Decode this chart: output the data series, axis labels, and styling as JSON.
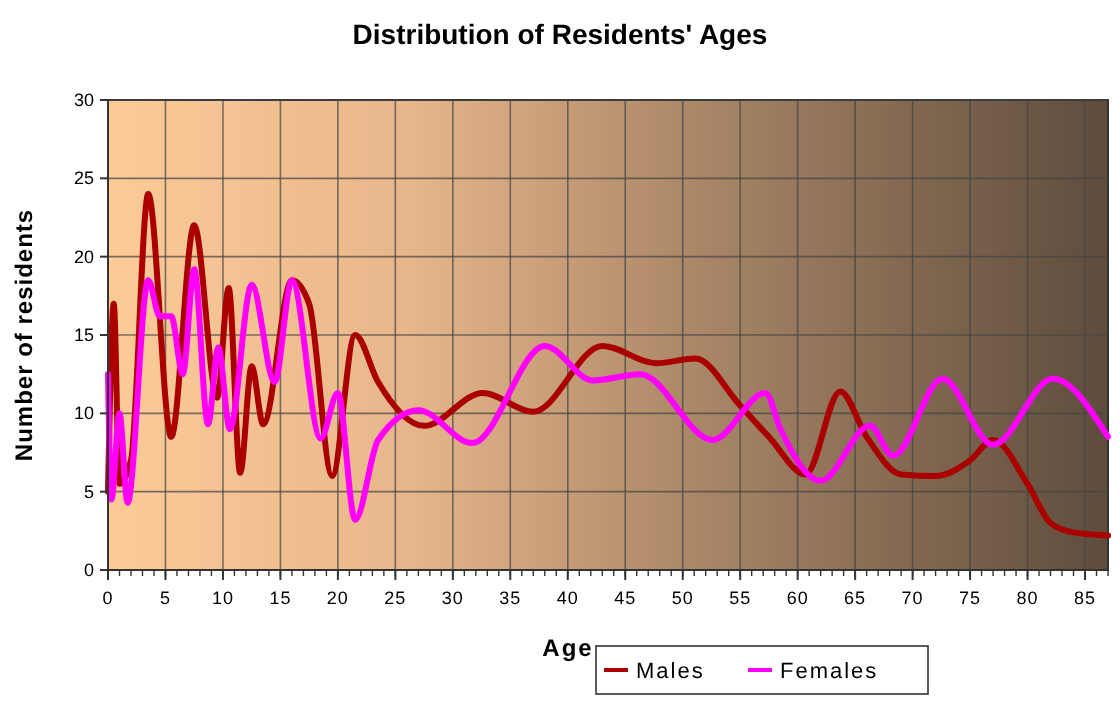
{
  "chart_data": {
    "type": "line",
    "title": "Distribution of Residents' Ages",
    "xlabel": "Age",
    "ylabel": "Number of residents",
    "xlim": [
      0,
      87
    ],
    "xticks": [
      0,
      5,
      10,
      15,
      20,
      25,
      30,
      35,
      40,
      45,
      50,
      55,
      60,
      65,
      70,
      75,
      80,
      85
    ],
    "ylim": [
      0,
      30
    ],
    "yticks": [
      0,
      5,
      10,
      15,
      20,
      25,
      30
    ],
    "grid": true,
    "legend": "bottom right",
    "marker": "none",
    "line_style": "solid",
    "series": [
      {
        "name": "Males",
        "color": "#aa0000",
        "x": [
          0,
          0.5,
          1,
          2,
          3.5,
          5.5,
          7.5,
          9.5,
          10.5,
          11.5,
          12.5,
          13.5,
          16,
          17.5,
          19.5,
          21.5,
          23.5,
          27.5,
          32.6,
          37,
          43,
          47.7,
          51.1,
          55,
          57.5,
          60.7,
          63.7,
          66,
          69,
          72,
          75,
          77,
          80,
          82,
          84,
          87
        ],
        "values": [
          5,
          17,
          5.5,
          7,
          24,
          8.5,
          22,
          11,
          18,
          6.2,
          13,
          9.3,
          18.5,
          17,
          6,
          15,
          12,
          9.2,
          11.3,
          10.1,
          14.3,
          13.2,
          13.5,
          10.5,
          8.5,
          6.1,
          11.4,
          8.5,
          6.1,
          6,
          7,
          8.3,
          5.5,
          3,
          2.4,
          2.2
        ]
      },
      {
        "name": "Females",
        "color": "#ff00ff",
        "x": [
          0,
          0.3,
          1,
          1.7,
          3.5,
          4.5,
          5.5,
          6.5,
          7.5,
          8.7,
          9.6,
          10.6,
          12.5,
          14.5,
          16,
          18.5,
          20,
          21.5,
          23.5,
          27,
          31.7,
          38,
          42.2,
          46.3,
          52.6,
          57.2,
          58.5,
          62,
          66.3,
          68.3,
          72.6,
          77,
          82.2,
          87
        ],
        "values": [
          12.5,
          4.5,
          10,
          4.3,
          18.5,
          16.2,
          16.2,
          12.5,
          19.2,
          9.3,
          14.2,
          9,
          18.2,
          12,
          18.5,
          8.4,
          11.3,
          3.2,
          8.3,
          10.2,
          8.1,
          14.3,
          12.1,
          12.5,
          8.3,
          11.3,
          9,
          5.7,
          9.2,
          7.3,
          12.2,
          8,
          12.2,
          8.5
        ]
      }
    ]
  }
}
